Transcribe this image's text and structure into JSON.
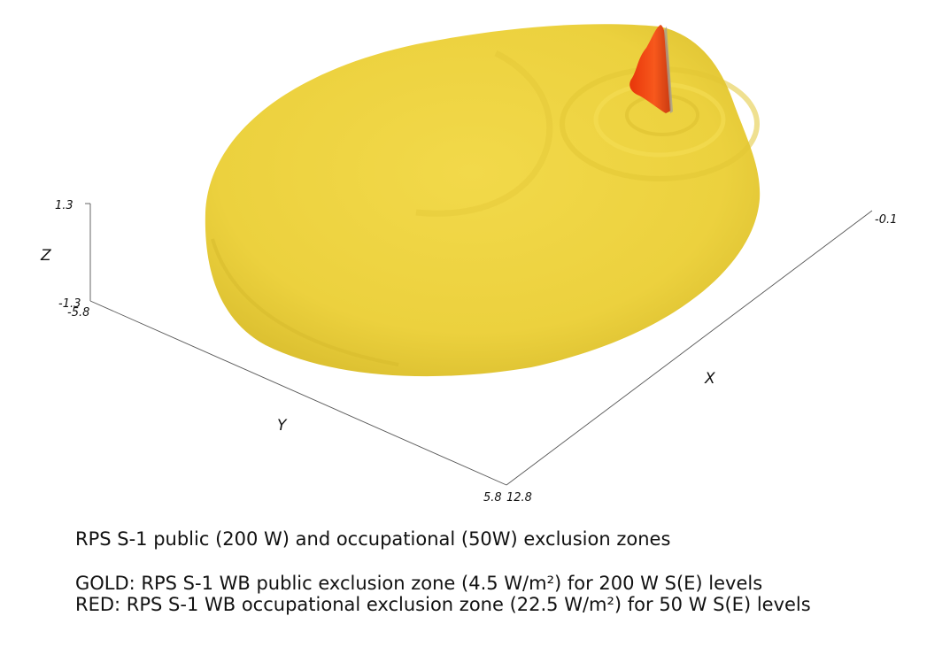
{
  "colors": {
    "gold_zone": "#e9cc3a",
    "gold_highlight": "#f2d94a",
    "red_zone": "#f04a12",
    "axis": "#555555",
    "background": "#ffffff"
  },
  "axes": {
    "z": {
      "title": "Z",
      "max_label": "1.3",
      "min_label": "-1.3"
    },
    "y": {
      "title": "Y",
      "min_label": "-5.8",
      "max_label": "5.8"
    },
    "x": {
      "title": "X",
      "min_label": "-0.1",
      "max_label": "12.8"
    }
  },
  "caption": {
    "title": "RPS S-1 public (200 W) and occupational (50W) exclusion zones",
    "gold": "GOLD: RPS S-1 WB public exclusion zone (4.5 W/m²) for 200 W S(E) levels",
    "red": "RED: RPS S-1 WB occupational exclusion zone (22.5 W/m²) for 50 W S(E) levels"
  }
}
